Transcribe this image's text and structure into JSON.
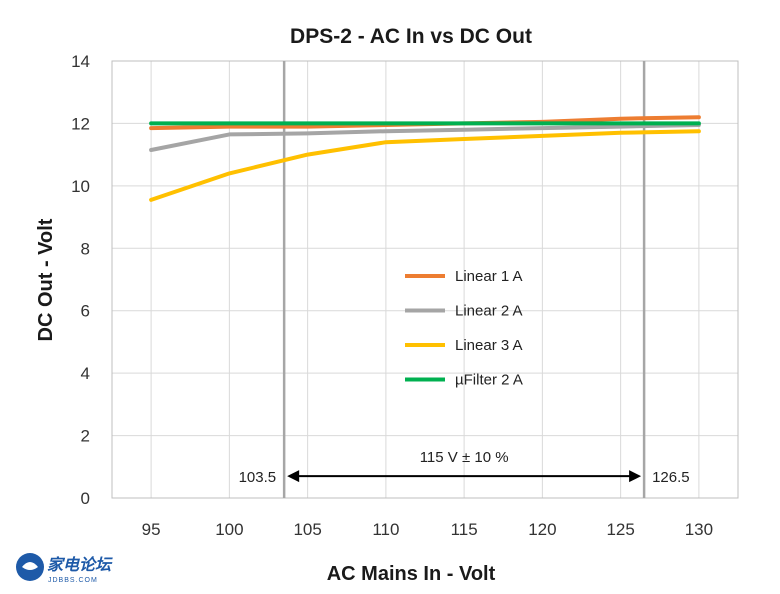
{
  "chart_data": {
    "type": "line",
    "title": "DPS-2 - AC In vs DC Out",
    "xlabel": "AC Mains In - Volt",
    "ylabel": "DC Out - Volt",
    "x": [
      95,
      100,
      105,
      110,
      115,
      120,
      125,
      130
    ],
    "xlim": [
      92.5,
      132.5
    ],
    "ylim": [
      0,
      14
    ],
    "x_ticks": [
      "95",
      "100",
      "105",
      "110",
      "115",
      "120",
      "125",
      "130"
    ],
    "y_ticks": [
      "0",
      "2",
      "4",
      "6",
      "8",
      "10",
      "12",
      "14"
    ],
    "grid": true,
    "legend_position": "center-right",
    "series": [
      {
        "name": "Linear 1 A",
        "color": "#ed7d31",
        "values": [
          11.85,
          11.9,
          11.9,
          11.95,
          12.0,
          12.05,
          12.15,
          12.2
        ]
      },
      {
        "name": "Linear 2 A",
        "color": "#a5a5a5",
        "values": [
          11.15,
          11.65,
          11.68,
          11.75,
          11.8,
          11.85,
          11.9,
          11.95
        ]
      },
      {
        "name": "Linear 3 A",
        "color": "#ffc000",
        "values": [
          9.55,
          10.4,
          11.0,
          11.4,
          11.5,
          11.6,
          11.7,
          11.75
        ]
      },
      {
        "name": "µFilter 2 A",
        "color": "#00b050",
        "values": [
          12.0,
          12.0,
          12.0,
          12.0,
          12.0,
          12.0,
          12.0,
          12.0
        ]
      }
    ],
    "ref_lines": [
      {
        "x": 103.5,
        "label": "103.5"
      },
      {
        "x": 126.5,
        "label": "126.5"
      }
    ],
    "range_annotation": {
      "from": 103.5,
      "to": 126.5,
      "y": 0.7,
      "label": "115 V ± 10 %"
    }
  },
  "watermark": {
    "text": "家电论坛",
    "sub": "JDBBS.COM",
    "color": "#1e5aa8"
  }
}
